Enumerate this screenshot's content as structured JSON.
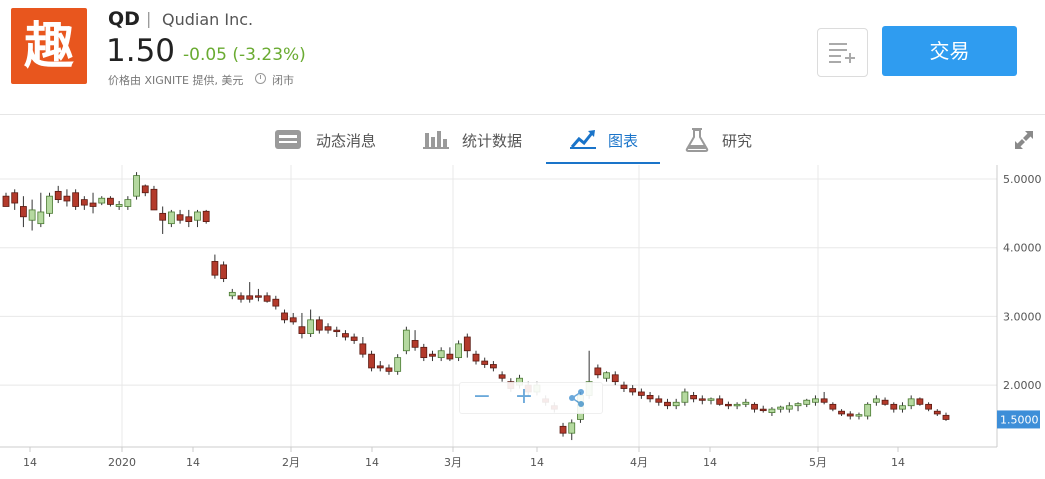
{
  "header": {
    "logo_char": "趣",
    "ticker": "QD",
    "separator": "|",
    "company": "Qudian Inc.",
    "price": "1.50",
    "change": "-0.05 (-3.23%)",
    "provider": "价格由 XIGNITE 提供, 美元",
    "market_status": "闭市",
    "trade_label": "交易",
    "colors": {
      "logo_bg": "#e8561e",
      "trade_bg": "#2f9cf0",
      "change": "#6aab32"
    }
  },
  "tabs": [
    {
      "label": "动态消息",
      "icon": "newspaper-icon"
    },
    {
      "label": "统计数据",
      "icon": "bar-chart-icon"
    },
    {
      "label": "图表",
      "icon": "line-chart-icon",
      "active": true
    },
    {
      "label": "研究",
      "icon": "flask-icon"
    }
  ],
  "zoom_controls": {
    "minus": "−",
    "plus": "+",
    "share": "share-icon"
  },
  "chart_data": {
    "type": "candlestick",
    "y_ticks": [
      "5.0000",
      "4.0000",
      "3.0000",
      "2.0000"
    ],
    "last_price_label": "1.5000",
    "x_ticks": [
      "14",
      "2020",
      "14",
      "2月",
      "14",
      "3月",
      "14",
      "4月",
      "14",
      "5月",
      "14"
    ],
    "ylim": [
      1.0,
      5.2
    ],
    "colors": {
      "up": "#b5d9a0",
      "down": "#b33a2b",
      "grid": "#e8e8e8",
      "price_tag": "#3d8ed8"
    },
    "candles": [
      [
        4.75,
        4.8,
        4.6,
        4.6
      ],
      [
        4.8,
        4.85,
        4.55,
        4.65
      ],
      [
        4.6,
        4.75,
        4.3,
        4.45
      ],
      [
        4.4,
        4.7,
        4.25,
        4.55
      ],
      [
        4.35,
        4.8,
        4.3,
        4.52
      ],
      [
        4.5,
        4.8,
        4.45,
        4.75
      ],
      [
        4.82,
        4.9,
        4.65,
        4.7
      ],
      [
        4.75,
        4.85,
        4.6,
        4.68
      ],
      [
        4.8,
        4.85,
        4.55,
        4.6
      ],
      [
        4.7,
        4.75,
        4.55,
        4.62
      ],
      [
        4.65,
        4.8,
        4.5,
        4.6
      ],
      [
        4.65,
        4.75,
        4.62,
        4.72
      ],
      [
        4.72,
        4.75,
        4.6,
        4.63
      ],
      [
        4.6,
        4.68,
        4.55,
        4.63
      ],
      [
        4.6,
        4.75,
        4.55,
        4.7
      ],
      [
        4.75,
        5.1,
        4.7,
        5.05
      ],
      [
        4.9,
        4.92,
        4.75,
        4.8
      ],
      [
        4.85,
        4.9,
        4.55,
        4.55
      ],
      [
        4.5,
        4.6,
        4.2,
        4.4
      ],
      [
        4.35,
        4.55,
        4.3,
        4.52
      ],
      [
        4.48,
        4.55,
        4.35,
        4.4
      ],
      [
        4.45,
        4.55,
        4.3,
        4.38
      ],
      [
        4.4,
        4.55,
        4.3,
        4.52
      ],
      [
        4.53,
        4.55,
        4.35,
        4.38
      ],
      [
        3.8,
        3.9,
        3.55,
        3.6
      ],
      [
        3.75,
        3.8,
        3.5,
        3.55
      ],
      [
        3.3,
        3.4,
        3.25,
        3.35
      ],
      [
        3.3,
        3.35,
        3.2,
        3.25
      ],
      [
        3.3,
        3.5,
        3.2,
        3.25
      ],
      [
        3.3,
        3.4,
        3.22,
        3.28
      ],
      [
        3.3,
        3.35,
        3.2,
        3.22
      ],
      [
        3.25,
        3.3,
        3.1,
        3.15
      ],
      [
        3.05,
        3.1,
        2.9,
        2.95
      ],
      [
        2.98,
        3.05,
        2.88,
        2.92
      ],
      [
        2.85,
        3.05,
        2.68,
        2.75
      ],
      [
        2.75,
        3.1,
        2.7,
        2.95
      ],
      [
        2.95,
        3.0,
        2.75,
        2.8
      ],
      [
        2.85,
        2.9,
        2.75,
        2.8
      ],
      [
        2.8,
        2.85,
        2.7,
        2.78
      ],
      [
        2.75,
        2.8,
        2.65,
        2.7
      ],
      [
        2.7,
        2.75,
        2.6,
        2.65
      ],
      [
        2.6,
        2.7,
        2.4,
        2.45
      ],
      [
        2.45,
        2.5,
        2.2,
        2.25
      ],
      [
        2.28,
        2.35,
        2.2,
        2.25
      ],
      [
        2.25,
        2.3,
        2.15,
        2.2
      ],
      [
        2.2,
        2.45,
        2.15,
        2.4
      ],
      [
        2.5,
        2.85,
        2.45,
        2.8
      ],
      [
        2.65,
        2.8,
        2.5,
        2.55
      ],
      [
        2.55,
        2.6,
        2.35,
        2.4
      ],
      [
        2.45,
        2.5,
        2.35,
        2.42
      ],
      [
        2.4,
        2.55,
        2.35,
        2.5
      ],
      [
        2.45,
        2.55,
        2.35,
        2.38
      ],
      [
        2.4,
        2.65,
        2.35,
        2.6
      ],
      [
        2.7,
        2.75,
        2.4,
        2.5
      ],
      [
        2.45,
        2.5,
        2.3,
        2.35
      ],
      [
        2.35,
        2.4,
        2.25,
        2.3
      ],
      [
        2.3,
        2.35,
        2.2,
        2.25
      ],
      [
        2.15,
        2.2,
        2.05,
        2.1
      ],
      [
        2.05,
        2.1,
        1.9,
        1.95
      ],
      [
        2.0,
        2.15,
        1.95,
        2.1
      ],
      [
        2.0,
        2.05,
        1.85,
        1.9
      ],
      [
        1.9,
        2.05,
        1.85,
        2.0
      ],
      [
        1.8,
        1.85,
        1.7,
        1.75
      ],
      [
        1.7,
        1.75,
        1.6,
        1.65
      ],
      [
        1.4,
        1.45,
        1.25,
        1.3
      ],
      [
        1.3,
        1.5,
        1.2,
        1.45
      ],
      [
        1.5,
        1.9,
        1.45,
        1.85
      ],
      [
        1.85,
        2.5,
        1.8,
        2.05
      ],
      [
        2.25,
        2.3,
        2.1,
        2.15
      ],
      [
        2.1,
        2.2,
        2.05,
        2.18
      ],
      [
        2.15,
        2.2,
        2.0,
        2.05
      ],
      [
        2.0,
        2.05,
        1.9,
        1.95
      ],
      [
        1.95,
        2.0,
        1.85,
        1.9
      ],
      [
        1.9,
        1.95,
        1.8,
        1.85
      ],
      [
        1.85,
        1.9,
        1.75,
        1.8
      ],
      [
        1.8,
        1.85,
        1.7,
        1.75
      ],
      [
        1.75,
        1.8,
        1.65,
        1.7
      ],
      [
        1.7,
        1.8,
        1.65,
        1.75
      ],
      [
        1.75,
        1.95,
        1.7,
        1.9
      ],
      [
        1.85,
        1.9,
        1.75,
        1.8
      ],
      [
        1.8,
        1.85,
        1.72,
        1.78
      ],
      [
        1.78,
        1.82,
        1.72,
        1.8
      ],
      [
        1.8,
        1.85,
        1.7,
        1.72
      ],
      [
        1.72,
        1.76,
        1.65,
        1.7
      ],
      [
        1.7,
        1.75,
        1.65,
        1.72
      ],
      [
        1.72,
        1.8,
        1.68,
        1.75
      ],
      [
        1.72,
        1.75,
        1.6,
        1.65
      ],
      [
        1.65,
        1.7,
        1.6,
        1.63
      ],
      [
        1.6,
        1.68,
        1.55,
        1.65
      ],
      [
        1.65,
        1.7,
        1.6,
        1.68
      ],
      [
        1.65,
        1.75,
        1.6,
        1.7
      ],
      [
        1.7,
        1.75,
        1.62,
        1.73
      ],
      [
        1.72,
        1.8,
        1.68,
        1.78
      ],
      [
        1.75,
        1.85,
        1.7,
        1.8
      ],
      [
        1.8,
        1.9,
        1.72,
        1.75
      ],
      [
        1.72,
        1.75,
        1.62,
        1.65
      ],
      [
        1.62,
        1.65,
        1.55,
        1.58
      ],
      [
        1.58,
        1.62,
        1.5,
        1.55
      ],
      [
        1.55,
        1.6,
        1.5,
        1.57
      ],
      [
        1.55,
        1.75,
        1.5,
        1.72
      ],
      [
        1.75,
        1.85,
        1.7,
        1.8
      ],
      [
        1.78,
        1.82,
        1.7,
        1.72
      ],
      [
        1.72,
        1.75,
        1.6,
        1.65
      ],
      [
        1.65,
        1.75,
        1.6,
        1.7
      ],
      [
        1.7,
        1.85,
        1.65,
        1.8
      ],
      [
        1.8,
        1.82,
        1.7,
        1.72
      ],
      [
        1.72,
        1.75,
        1.62,
        1.65
      ],
      [
        1.62,
        1.65,
        1.55,
        1.58
      ],
      [
        1.56,
        1.6,
        1.48,
        1.5
      ]
    ]
  }
}
